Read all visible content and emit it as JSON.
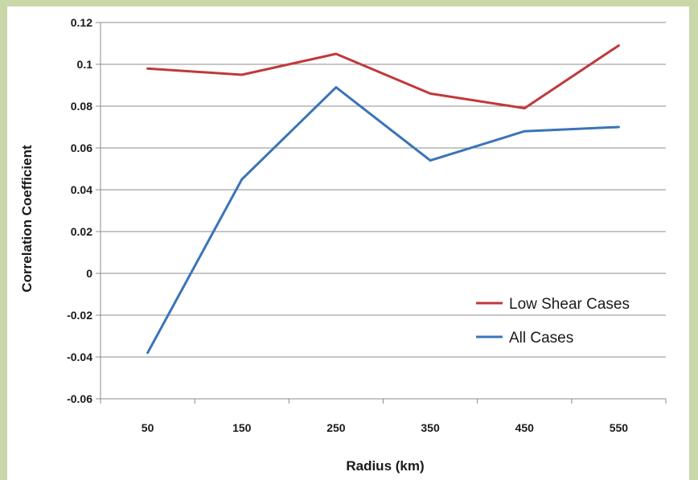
{
  "chart_data": {
    "type": "line",
    "xlabel": "Radius (km)",
    "ylabel": "Correlation Coefficient",
    "categories": [
      "50",
      "150",
      "250",
      "350",
      "450",
      "550"
    ],
    "yticks": [
      "0.12",
      "0.1",
      "0.08",
      "0.06",
      "0.04",
      "0.02",
      "0",
      "-0.02",
      "-0.04",
      "-0.06"
    ],
    "ylim": [
      -0.06,
      0.12
    ],
    "grid": true,
    "legend_position": "lower-right",
    "series": [
      {
        "name": "Low Shear Cases",
        "color": "#c0393b",
        "values": [
          0.098,
          0.095,
          0.105,
          0.086,
          0.079,
          0.109
        ]
      },
      {
        "name": "All Cases",
        "color": "#3a74b7",
        "values": [
          -0.038,
          0.045,
          0.089,
          0.054,
          0.068,
          0.07
        ]
      }
    ]
  }
}
